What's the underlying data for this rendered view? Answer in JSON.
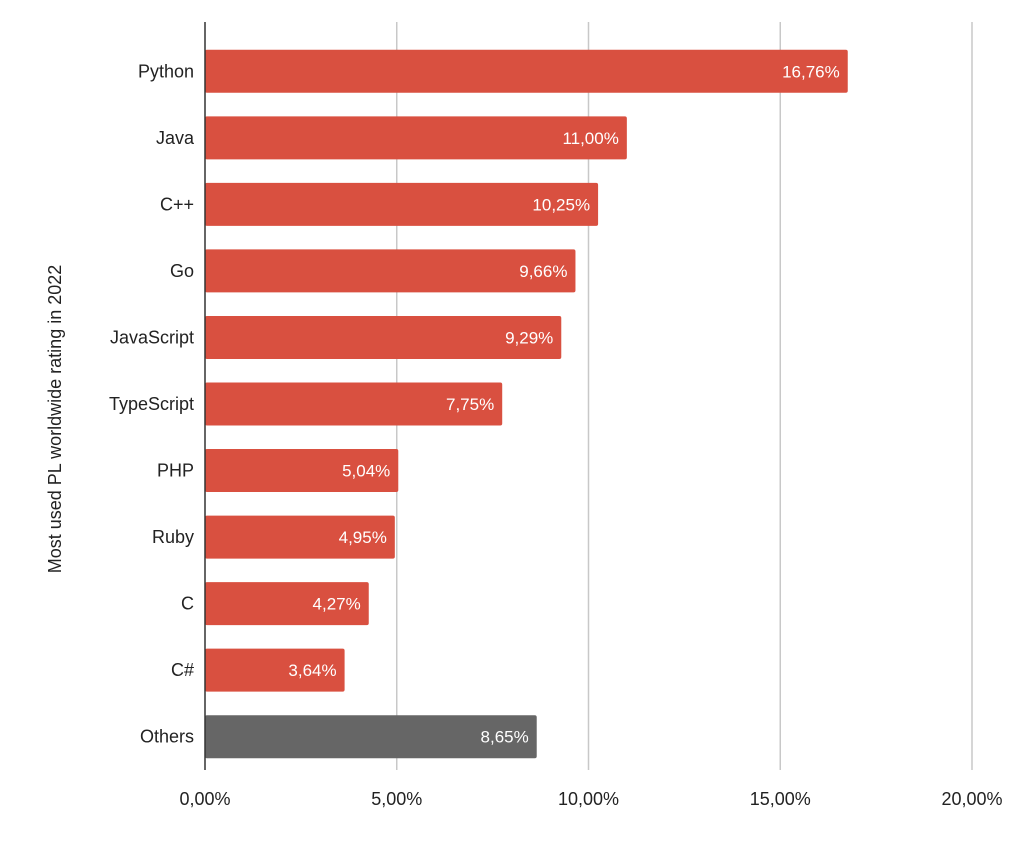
{
  "chart_data": {
    "type": "bar",
    "orientation": "horizontal",
    "title": "",
    "xlabel": "",
    "ylabel": "Most used PL worldwide rating in 2022",
    "categories": [
      "Python",
      "Java",
      "C++",
      "Go",
      "JavaScript",
      "TypeScript",
      "PHP",
      "Ruby",
      "C",
      "C#",
      "Others"
    ],
    "values": [
      16.76,
      11.0,
      10.25,
      9.66,
      9.29,
      7.75,
      5.04,
      4.95,
      4.27,
      3.64,
      8.65
    ],
    "data_labels": [
      "16,76%",
      "11,00%",
      "10,25%",
      "9,66%",
      "9,29%",
      "7,75%",
      "5,04%",
      "4,95%",
      "4,27%",
      "3,64%",
      "8,65%"
    ],
    "bar_colors": [
      "#d95040",
      "#d95040",
      "#d95040",
      "#d95040",
      "#d95040",
      "#d95040",
      "#d95040",
      "#d95040",
      "#d95040",
      "#d95040",
      "#666666"
    ],
    "xlim": [
      0,
      20
    ],
    "xticks": [
      0,
      5,
      10,
      15,
      20
    ],
    "xtick_labels": [
      "0,00%",
      "5,00%",
      "10,00%",
      "15,00%",
      "20,00%"
    ],
    "grid": "vertical",
    "legend": "none"
  }
}
